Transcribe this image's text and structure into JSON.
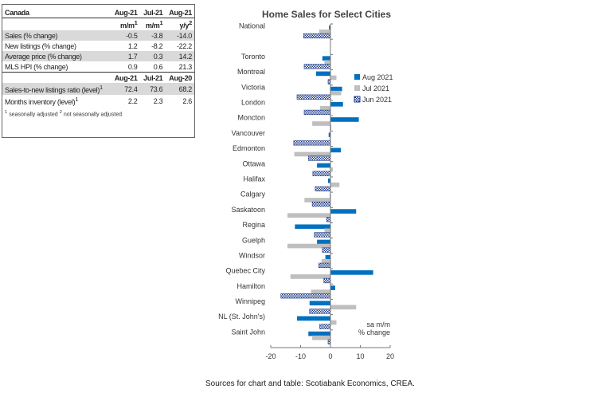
{
  "table": {
    "title": "Canada",
    "head1": [
      "Aug-21",
      "Jul-21",
      "Aug-21"
    ],
    "units": [
      "m/m",
      "m/m",
      "y/y"
    ],
    "unit_sups": [
      "1",
      "1",
      "2"
    ],
    "rows": [
      {
        "label": "Sales (% change)",
        "v": [
          "-0.5",
          "-3.8",
          "-14.0"
        ]
      },
      {
        "label": "New listings (% change)",
        "v": [
          "1.2",
          "-8.2",
          "-22.2"
        ]
      },
      {
        "label": "Average price (% change)",
        "v": [
          "1.7",
          "0.3",
          "14.2"
        ]
      },
      {
        "label": "MLS HPI (% change)",
        "v": [
          "0.9",
          "0.6",
          "21.3"
        ]
      }
    ],
    "head2": [
      "Aug-21",
      "Jul-21",
      "Aug-20"
    ],
    "rows2": [
      {
        "label": "Sales-to-new listings ratio (level)",
        "sup": "1",
        "v": [
          "72.4",
          "73.6",
          "68.2"
        ]
      },
      {
        "label": "Months inventory (level)",
        "sup": "1",
        "v": [
          "2.2",
          "2.3",
          "2.6"
        ]
      }
    ],
    "footnote1": "seasonally adjusted",
    "footnote2": "not seasonally adjusted"
  },
  "chart_data": {
    "type": "bar",
    "orientation": "horizontal",
    "title": "Home Sales for Select Cities",
    "categories": [
      "National",
      "",
      "Toronto",
      "Montreal",
      "Victoria",
      "London",
      "Moncton",
      "Vancouver",
      "Edmonton",
      "Ottawa",
      "Halifax",
      "Calgary",
      "Saskatoon",
      "Regina",
      "Guelph",
      "Windsor",
      "Quebec City",
      "Hamilton",
      "Winnipeg",
      "NL (St. John's)",
      "Saint John"
    ],
    "series": [
      {
        "name": "Aug 2021",
        "color": "#0070c0",
        "values": [
          -0.5,
          null,
          -2.7,
          -4.8,
          3.9,
          4.2,
          9.5,
          -0.6,
          3.5,
          -4.5,
          -0.8,
          -0.2,
          8.6,
          -11.9,
          -4.5,
          -1.7,
          14.3,
          1.6,
          -7.0,
          -11.2,
          -7.4
        ]
      },
      {
        "name": "Jul 2021",
        "color": "#bfbfbf",
        "values": [
          -3.8,
          null,
          -2.0,
          2.0,
          3.6,
          -3.5,
          -6.1,
          -0.3,
          -12.1,
          0.8,
          3.0,
          -8.7,
          -14.4,
          -2.0,
          -14.4,
          -3.0,
          -13.4,
          -6.5,
          8.6,
          2.0,
          -6.1
        ]
      },
      {
        "name": "Jun 2021",
        "color": "#1f3c88",
        "pattern": "checker",
        "values": [
          -9.0,
          null,
          -8.8,
          -0.8,
          -11.2,
          -8.8,
          0,
          -12.3,
          -7.4,
          -5.9,
          -5.1,
          -6.1,
          -1.3,
          -5.4,
          -2.7,
          -3.9,
          -2.2,
          -16.6,
          -7.0,
          -3.6,
          -0.8
        ]
      }
    ],
    "xlim": [
      -20,
      20
    ],
    "xticks": [
      "-20",
      "-10",
      "0",
      "10",
      "20"
    ],
    "annotation": [
      "sa m/m",
      "% change"
    ],
    "legend": "right"
  },
  "source": "Sources for chart and table: Scotiabank Economics, CREA."
}
